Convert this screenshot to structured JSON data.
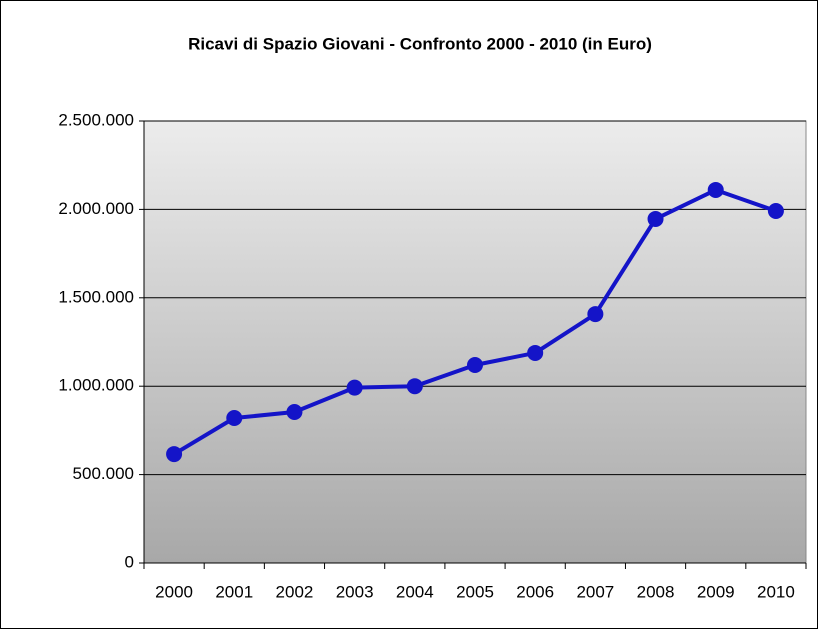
{
  "chart_data": {
    "type": "line",
    "title": "Ricavi di Spazio Giovani - Confronto 2000 - 2010 (in Euro)",
    "categories": [
      "2000",
      "2001",
      "2002",
      "2003",
      "2004",
      "2005",
      "2006",
      "2007",
      "2008",
      "2009",
      "2010"
    ],
    "series": [
      {
        "name": "Ricavi",
        "color": "#1414c8",
        "values": [
          616000,
          820000,
          854000,
          992000,
          1000000,
          1120000,
          1188000,
          1408000,
          1946000,
          2110000,
          1991000
        ]
      }
    ],
    "ylim": [
      0,
      2500000
    ],
    "yticks": [
      0,
      {
        "value": 500000,
        "label": "500.000"
      },
      {
        "value": 1000000,
        "label": "1.000.000"
      },
      {
        "value": 1500000,
        "label": "1.500.000"
      },
      {
        "value": 2000000,
        "label": "2.000.000"
      },
      {
        "value": 2500000,
        "label": "2.500.000"
      }
    ],
    "grid": true
  }
}
